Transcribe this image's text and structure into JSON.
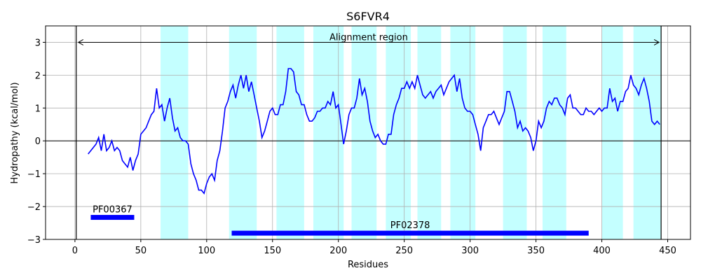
{
  "chart_data": {
    "type": "line",
    "title": "S6FVR4",
    "xlabel": "Residues",
    "ylabel": "Hydropathy (kcal/mol)",
    "xlim": [
      -22.3,
      467.3
    ],
    "ylim": [
      -3,
      3.5
    ],
    "xticks": [
      0,
      50,
      100,
      150,
      200,
      250,
      300,
      350,
      400,
      450
    ],
    "yticks": [
      {
        "value": -3,
        "label": "−3"
      },
      {
        "value": -2,
        "label": "−2"
      },
      {
        "value": -1,
        "label": "−1"
      },
      0,
      1,
      2,
      3
    ],
    "grid": true,
    "hline": 0,
    "color": "#0000ff",
    "region_color": "#c4ffff",
    "x": [
      10,
      12,
      14,
      16,
      18,
      20,
      22,
      24,
      26,
      28,
      30,
      32,
      34,
      36,
      38,
      40,
      42,
      44,
      46,
      48,
      50,
      52,
      54,
      56,
      58,
      60,
      62,
      64,
      66,
      68,
      70,
      72,
      74,
      76,
      78,
      80,
      82,
      84,
      86,
      88,
      90,
      92,
      94,
      96,
      98,
      100,
      102,
      104,
      106,
      108,
      110,
      112,
      114,
      116,
      118,
      120,
      122,
      124,
      126,
      128,
      130,
      132,
      134,
      136,
      138,
      140,
      142,
      144,
      146,
      148,
      150,
      152,
      154,
      156,
      158,
      160,
      162,
      164,
      166,
      168,
      170,
      172,
      174,
      176,
      178,
      180,
      182,
      184,
      186,
      188,
      190,
      192,
      194,
      196,
      198,
      200,
      202,
      204,
      206,
      208,
      210,
      212,
      214,
      216,
      218,
      220,
      222,
      224,
      226,
      228,
      230,
      232,
      234,
      236,
      238,
      240,
      242,
      244,
      246,
      248,
      250,
      252,
      254,
      256,
      258,
      260,
      262,
      264,
      266,
      268,
      270,
      272,
      274,
      276,
      278,
      280,
      282,
      284,
      286,
      288,
      290,
      292,
      294,
      296,
      298,
      300,
      302,
      304,
      306,
      308,
      310,
      312,
      314,
      316,
      318,
      320,
      322,
      324,
      326,
      328,
      330,
      332,
      334,
      336,
      338,
      340,
      342,
      344,
      346,
      348,
      350,
      352,
      354,
      356,
      358,
      360,
      362,
      364,
      366,
      368,
      370,
      372,
      374,
      376,
      378,
      380,
      382,
      384,
      386,
      388,
      390,
      392,
      394,
      396,
      398,
      400,
      402,
      404,
      406,
      408,
      410,
      412,
      414,
      416,
      418,
      420,
      422,
      424,
      426,
      428,
      430,
      432,
      434,
      436,
      438,
      440,
      442,
      444
    ],
    "values": [
      -0.4,
      -0.3,
      -0.2,
      -0.1,
      0.1,
      -0.3,
      0.2,
      -0.3,
      -0.2,
      0.0,
      -0.3,
      -0.2,
      -0.3,
      -0.6,
      -0.7,
      -0.8,
      -0.5,
      -0.9,
      -0.6,
      -0.4,
      0.2,
      0.3,
      0.4,
      0.6,
      0.8,
      0.9,
      1.6,
      1.0,
      1.1,
      0.6,
      1.0,
      1.3,
      0.7,
      0.3,
      0.4,
      0.1,
      0.0,
      0.0,
      -0.1,
      -0.7,
      -1.0,
      -1.2,
      -1.5,
      -1.5,
      -1.6,
      -1.3,
      -1.1,
      -1.0,
      -1.2,
      -0.6,
      -0.3,
      0.3,
      1.0,
      1.2,
      1.5,
      1.7,
      1.3,
      1.7,
      2.0,
      1.6,
      2.0,
      1.5,
      1.8,
      1.4,
      1.0,
      0.6,
      0.1,
      0.3,
      0.6,
      0.9,
      1.0,
      0.8,
      0.8,
      1.1,
      1.1,
      1.5,
      2.2,
      2.2,
      2.1,
      1.5,
      1.4,
      1.1,
      1.1,
      0.8,
      0.6,
      0.6,
      0.7,
      0.9,
      0.9,
      1.0,
      1.0,
      1.2,
      1.1,
      1.5,
      1.0,
      1.1,
      0.5,
      -0.1,
      0.3,
      0.8,
      1.0,
      1.0,
      1.3,
      1.9,
      1.4,
      1.6,
      1.2,
      0.6,
      0.3,
      0.1,
      0.2,
      0.0,
      -0.1,
      -0.1,
      0.2,
      0.2,
      0.8,
      1.1,
      1.3,
      1.6,
      1.6,
      1.8,
      1.6,
      1.8,
      1.6,
      2.0,
      1.7,
      1.4,
      1.3,
      1.4,
      1.5,
      1.3,
      1.5,
      1.6,
      1.7,
      1.4,
      1.6,
      1.8,
      1.9,
      2.0,
      1.5,
      1.9,
      1.3,
      1.0,
      0.9,
      0.9,
      0.8,
      0.5,
      0.2,
      -0.3,
      0.4,
      0.6,
      0.8,
      0.8,
      0.9,
      0.7,
      0.5,
      0.7,
      0.9,
      1.5,
      1.5,
      1.2,
      0.9,
      0.4,
      0.6,
      0.3,
      0.4,
      0.3,
      0.1,
      -0.3,
      0.0,
      0.6,
      0.4,
      0.6,
      1.0,
      1.2,
      1.1,
      1.3,
      1.3,
      1.1,
      1.0,
      0.8,
      1.3,
      1.4,
      1.0,
      1.0,
      0.9,
      0.8,
      0.8,
      1.0,
      0.9,
      0.9,
      0.8,
      0.9,
      1.0,
      0.9,
      1.0,
      1.0,
      1.6,
      1.2,
      1.3,
      0.9,
      1.2,
      1.2,
      1.5,
      1.6,
      2.0,
      1.7,
      1.6,
      1.4,
      1.7,
      1.9,
      1.6,
      1.2,
      0.6,
      0.5,
      0.6,
      0.5
    ],
    "highlight_regions": [
      [
        65,
        86
      ],
      [
        117,
        138
      ],
      [
        153,
        174
      ],
      [
        181,
        204
      ],
      [
        210,
        229
      ],
      [
        236,
        255
      ],
      [
        260,
        278
      ],
      [
        285,
        304
      ],
      [
        325,
        343
      ],
      [
        355,
        373
      ],
      [
        400,
        416
      ],
      [
        424,
        445
      ]
    ],
    "alignment": {
      "label": "Alignment region",
      "start": 1,
      "end": 445,
      "y": 3
    },
    "domains": [
      {
        "label": "PF00367",
        "start": 12,
        "end": 45,
        "y": -2.33,
        "color": "#0000ff"
      },
      {
        "label": "PF02378",
        "start": 119,
        "end": 390,
        "y": -2.81,
        "color": "#0000ff"
      }
    ]
  }
}
